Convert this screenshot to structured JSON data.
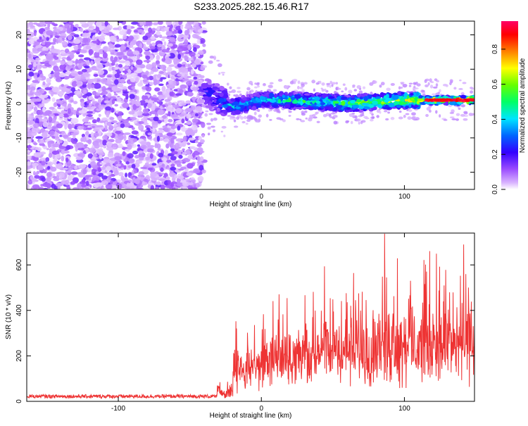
{
  "title": "S233.2025.282.15.46.R17",
  "chart_data": [
    {
      "type": "heatmap",
      "title": "S233.2025.282.15.46.R17",
      "xlabel": "Height of straight line (km)",
      "ylabel": "Frequency (Hz)",
      "xlim": [
        -164,
        149
      ],
      "ylim": [
        -25,
        24
      ],
      "xticks": [
        -100,
        0,
        100
      ],
      "yticks": [
        -20,
        -10,
        0,
        10,
        20
      ],
      "colorbar": {
        "label": "Normalized spectral amplitude",
        "range": [
          0,
          0.96
        ],
        "ticks": [
          0.0,
          0.2,
          0.4,
          0.6,
          0.8
        ],
        "colormap": [
          "#ffffff",
          "#d9b3ff",
          "#9b4dff",
          "#6a00e6",
          "#0000ff",
          "#00e5ff",
          "#00ff00",
          "#ffff00",
          "#ff8000",
          "#ff0000",
          "#ff0066"
        ]
      },
      "regions": [
        {
          "name": "noise",
          "x_range": [
            -164,
            -40
          ],
          "y_range": [
            -25,
            24
          ],
          "amplitude": [
            0.02,
            0.15
          ]
        },
        {
          "name": "signal",
          "x_range": [
            -40,
            149
          ],
          "frequency_hz": [
            3,
            -1,
            1,
            1,
            0,
            1,
            1
          ],
          "signal_x": [
            -38,
            -20,
            0,
            20,
            60,
            100,
            149
          ],
          "amplitude": [
            0.25,
            0.4,
            0.4,
            0.5,
            0.55,
            0.65,
            0.95
          ]
        }
      ]
    },
    {
      "type": "line",
      "xlabel": "Height of straight line (km)",
      "ylabel": "SNR (10 * v/v)",
      "xlim": [
        -164,
        149
      ],
      "ylim": [
        0,
        740
      ],
      "xticks": [
        -100,
        0,
        100
      ],
      "yticks": [
        0,
        200,
        400,
        600
      ],
      "color": "#ee3333",
      "series": [
        {
          "name": "SNR",
          "x_range": [
            -164,
            149
          ],
          "segments": [
            {
              "x": [
                -164,
                -31
              ],
              "base": 22,
              "spread": 8
            },
            {
              "x": [
                -31,
                -20
              ],
              "base": 45,
              "spread": 50
            },
            {
              "x": [
                -20,
                0
              ],
              "base": 130,
              "spread": 280
            },
            {
              "x": [
                0,
                30
              ],
              "base": 160,
              "spread": 400
            },
            {
              "x": [
                30,
                80
              ],
              "base": 200,
              "spread": 420
            },
            {
              "x": [
                80,
                110
              ],
              "base": 220,
              "spread": 520
            },
            {
              "x": [
                110,
                149
              ],
              "base": 240,
              "spread": 460
            }
          ]
        }
      ]
    }
  ]
}
